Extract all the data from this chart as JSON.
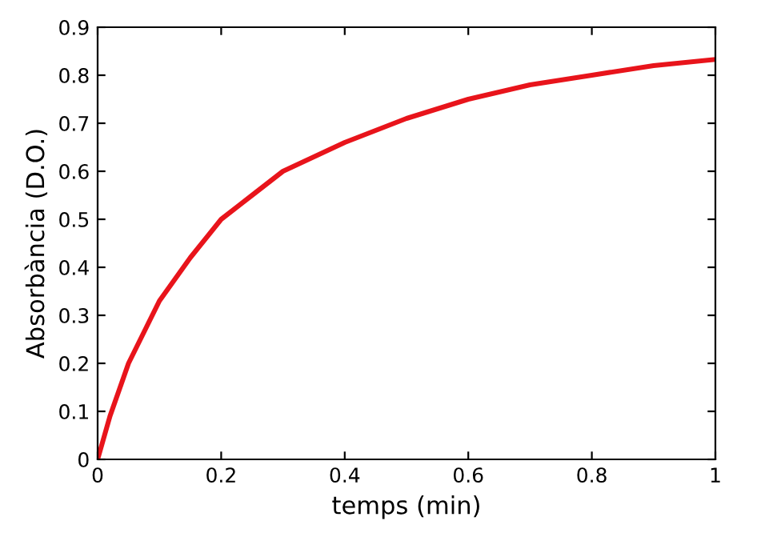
{
  "chart_data": {
    "type": "line",
    "xlabel": "temps (min)",
    "ylabel": "Absorbància (D.O.)",
    "x": [
      0,
      0.02,
      0.05,
      0.1,
      0.15,
      0.2,
      0.25,
      0.3,
      0.4,
      0.5,
      0.6,
      0.7,
      0.8,
      0.9,
      1.0
    ],
    "series": [
      {
        "color": "#e8141b",
        "values": [
          0,
          0.09,
          0.2,
          0.33,
          0.42,
          0.5,
          0.55,
          0.6,
          0.66,
          0.71,
          0.75,
          0.78,
          0.8,
          0.82,
          0.833
        ]
      }
    ],
    "xlim": [
      0,
      1
    ],
    "ylim": [
      0,
      0.9
    ],
    "xticks": [
      0,
      0.2,
      0.4,
      0.6,
      0.8,
      1
    ],
    "yticks": [
      0,
      0.1,
      0.2,
      0.3,
      0.4,
      0.5,
      0.6,
      0.7,
      0.8,
      0.9
    ],
    "grid": false,
    "legend": false,
    "marker": "none",
    "line_style": "solid"
  }
}
